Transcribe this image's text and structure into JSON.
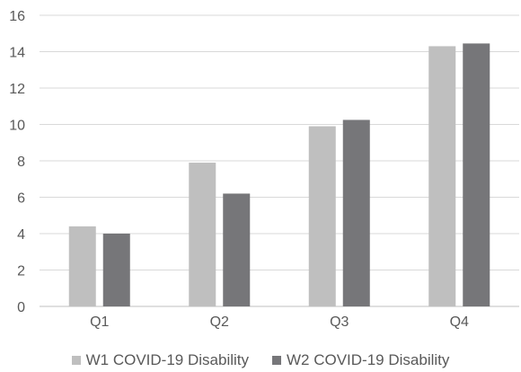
{
  "chart_data": {
    "type": "bar",
    "title": "",
    "xlabel": "",
    "ylabel": "",
    "categories": [
      "Q1",
      "Q2",
      "Q3",
      "Q4"
    ],
    "series": [
      {
        "name": "W1 COVID-19 Disability",
        "values": [
          4.4,
          7.9,
          9.9,
          14.3
        ],
        "color": "#bfbfbf"
      },
      {
        "name": "W2 COVID-19 Disability",
        "values": [
          4.0,
          6.2,
          10.25,
          14.45
        ],
        "color": "#767679"
      }
    ],
    "ylim": [
      0,
      16
    ],
    "yticks": [
      0,
      2,
      4,
      6,
      8,
      10,
      12,
      14,
      16
    ],
    "grid": true,
    "legend_position": "bottom",
    "colors": {
      "grid": "#d9d9d9",
      "axis": "#bfbfbf",
      "text": "#595959"
    }
  }
}
